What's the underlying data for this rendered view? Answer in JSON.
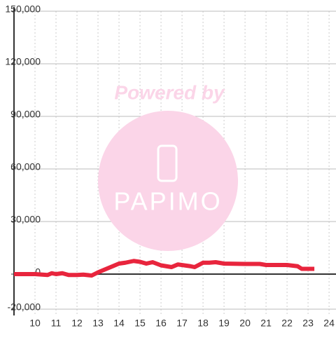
{
  "chart_data": {
    "type": "line",
    "watermark": {
      "top": "Powered by",
      "logo": "PAPIMO"
    },
    "x": [
      9,
      10,
      10.6,
      10.8,
      11,
      11.3,
      11.6,
      12,
      12.3,
      12.7,
      13,
      13.4,
      14,
      14.3,
      14.7,
      15,
      15.3,
      15.6,
      16,
      16.5,
      16.8,
      17.4,
      17.6,
      18,
      18.3,
      18.6,
      19,
      20,
      20.7,
      21,
      22,
      22.5,
      22.7,
      23.3
    ],
    "series": [
      {
        "color": "#e8253d",
        "values": [
          0,
          0,
          -500,
          500,
          0,
          500,
          -500,
          -500,
          -300,
          -800,
          1000,
          3000,
          6000,
          6500,
          7500,
          7000,
          6000,
          6800,
          5000,
          4000,
          5500,
          4500,
          4000,
          6500,
          6500,
          6800,
          6000,
          5800,
          5800,
          5200,
          5200,
          4500,
          3000,
          3000
        ]
      }
    ],
    "xlim": [
      9,
      24.33
    ],
    "xticks": [
      10,
      11,
      12,
      13,
      14,
      15,
      16,
      17,
      18,
      19,
      20,
      21,
      22,
      23,
      24
    ],
    "ylim": [
      -20000,
      150000
    ],
    "yticks": [
      {
        "value": -20000,
        "label": "-20,000"
      },
      {
        "value": 0,
        "label": "0"
      },
      {
        "value": 30000,
        "label": "30,000"
      },
      {
        "value": 60000,
        "label": "60,000"
      },
      {
        "value": 90000,
        "label": "90,000"
      },
      {
        "value": 120000,
        "label": "120,000"
      },
      {
        "value": 150000,
        "label": "150,000"
      }
    ],
    "grid": true
  }
}
